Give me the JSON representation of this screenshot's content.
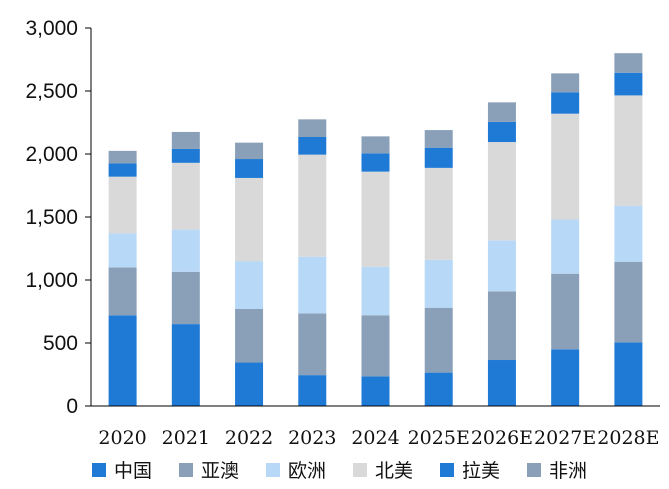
{
  "chart_data": {
    "type": "bar",
    "stacked": true,
    "title": "",
    "xlabel": "",
    "ylabel": "",
    "categories": [
      "2020",
      "2021",
      "2022",
      "2023",
      "2024",
      "2025E",
      "2026E",
      "2027E",
      "2028E"
    ],
    "ylim": [
      0,
      3000
    ],
    "yticks": [
      0,
      500,
      1000,
      1500,
      2000,
      2500,
      3000
    ],
    "ytick_labels": [
      "0",
      "500",
      "1,000",
      "1,500",
      "2,000",
      "2,500",
      "3,000"
    ],
    "grid": false,
    "legend_position": "bottom",
    "series": [
      {
        "name": "中国",
        "color": "#1f7ad6",
        "values": [
          720,
          650,
          345,
          245,
          235,
          265,
          365,
          450,
          505
        ]
      },
      {
        "name": "亚澳",
        "color": "#8aa0b8",
        "values": [
          380,
          415,
          425,
          490,
          485,
          515,
          545,
          600,
          640
        ]
      },
      {
        "name": "欧洲",
        "color": "#b7d8f7",
        "values": [
          270,
          335,
          380,
          450,
          385,
          380,
          405,
          430,
          445
        ]
      },
      {
        "name": "北美",
        "color": "#d9d9d9",
        "values": [
          450,
          530,
          660,
          810,
          755,
          730,
          780,
          840,
          875
        ]
      },
      {
        "name": "拉美",
        "color": "#1f7ad6",
        "values": [
          105,
          110,
          150,
          140,
          145,
          160,
          160,
          170,
          180
        ]
      },
      {
        "name": "非洲",
        "color": "#8aa0b8",
        "values": [
          100,
          135,
          130,
          140,
          135,
          140,
          155,
          150,
          155
        ]
      }
    ]
  }
}
